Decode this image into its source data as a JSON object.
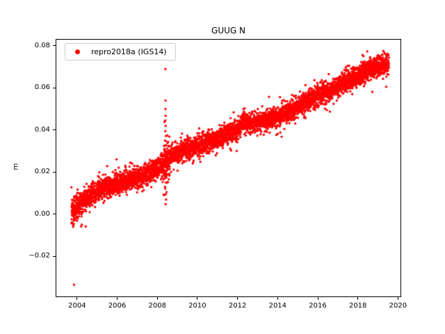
{
  "chart_data": {
    "type": "scatter",
    "title": "GUUG N",
    "xlabel": "",
    "ylabel": "m",
    "axes": {
      "xlim": [
        2002.93,
        2020.16
      ],
      "ylim": [
        -0.0394,
        0.0833
      ],
      "xticks": [
        2004,
        2006,
        2008,
        2010,
        2012,
        2014,
        2016,
        2018,
        2020
      ],
      "xtick_labels": [
        "2004",
        "2006",
        "2008",
        "2010",
        "2012",
        "2014",
        "2016",
        "2018",
        "2020"
      ],
      "yticks": [
        -0.02,
        0.0,
        0.02,
        0.04,
        0.06,
        0.08
      ],
      "ytick_labels": [
        "−0.02",
        "0.00",
        "0.02",
        "0.04",
        "0.06",
        "0.08"
      ],
      "grid": false,
      "legend_position": "upper left"
    },
    "series": [
      {
        "name": "repro2018a (IGS14)",
        "color": "#ff0000",
        "marker": "point",
        "marker_radius_px": 1.7,
        "seed": 7,
        "x_start": 2003.72,
        "x_end": 2019.55,
        "n_points": 5200,
        "noise_sigma": 0.0024,
        "noise_tail_prob": 0.05,
        "noise_tail_mult": 1.7,
        "early_window": [
          2003.72,
          2004.5
        ],
        "early_sigma": 0.0031,
        "event_window": [
          2008.3,
          2008.62
        ],
        "event_sigma": 0.0048,
        "trend_anchors": [
          [
            2003.72,
            0.0005
          ],
          [
            2004.0,
            0.0035
          ],
          [
            2004.5,
            0.008
          ],
          [
            2005.0,
            0.011
          ],
          [
            2005.5,
            0.013
          ],
          [
            2006.0,
            0.0145
          ],
          [
            2006.5,
            0.016
          ],
          [
            2007.0,
            0.0172
          ],
          [
            2007.5,
            0.019
          ],
          [
            2008.0,
            0.022
          ],
          [
            2008.3,
            0.024
          ],
          [
            2008.6,
            0.027
          ],
          [
            2009.0,
            0.029
          ],
          [
            2009.5,
            0.031
          ],
          [
            2010.0,
            0.032
          ],
          [
            2010.5,
            0.034
          ],
          [
            2011.0,
            0.036
          ],
          [
            2011.5,
            0.038
          ],
          [
            2012.0,
            0.04
          ],
          [
            2012.3,
            0.0445
          ],
          [
            2012.6,
            0.0425
          ],
          [
            2013.0,
            0.0435
          ],
          [
            2013.5,
            0.045
          ],
          [
            2014.0,
            0.0465
          ],
          [
            2014.5,
            0.049
          ],
          [
            2015.0,
            0.051
          ],
          [
            2015.5,
            0.054
          ],
          [
            2016.0,
            0.0565
          ],
          [
            2016.3,
            0.0585
          ],
          [
            2016.6,
            0.058
          ],
          [
            2017.0,
            0.061
          ],
          [
            2017.5,
            0.0635
          ],
          [
            2018.0,
            0.066
          ],
          [
            2018.5,
            0.069
          ],
          [
            2019.0,
            0.07
          ],
          [
            2019.3,
            0.0715
          ],
          [
            2019.55,
            0.072
          ]
        ],
        "outliers": [
          [
            2003.85,
            -0.0335
          ],
          [
            2003.8,
            -0.006
          ],
          [
            2003.83,
            -0.0045
          ],
          [
            2014.2,
            0.0368
          ],
          [
            2008.4,
            0.069
          ],
          [
            2008.41,
            0.054
          ],
          [
            2008.405,
            0.05
          ],
          [
            2008.41,
            0.0468
          ],
          [
            2008.395,
            0.0445
          ],
          [
            2008.42,
            0.042
          ],
          [
            2008.4,
            0.0395
          ],
          [
            2008.43,
            0.0372
          ],
          [
            2008.385,
            0.035
          ],
          [
            2008.44,
            0.0328
          ],
          [
            2008.37,
            0.0305
          ],
          [
            2008.45,
            0.0282
          ],
          [
            2008.4,
            0.0258
          ],
          [
            2008.42,
            0.0232
          ],
          [
            2008.39,
            0.0205
          ],
          [
            2008.41,
            0.0178
          ],
          [
            2008.43,
            0.015
          ],
          [
            2008.4,
            0.0122
          ],
          [
            2008.42,
            0.0095
          ],
          [
            2008.44,
            0.007
          ],
          [
            2008.41,
            0.0048
          ],
          [
            2008.46,
            0.0105
          ],
          [
            2008.48,
            0.015
          ],
          [
            2008.5,
            0.019
          ],
          [
            2008.52,
            0.0225
          ],
          [
            2008.35,
            0.031
          ],
          [
            2008.33,
            0.028
          ],
          [
            2008.47,
            0.0245
          ]
        ]
      }
    ]
  }
}
